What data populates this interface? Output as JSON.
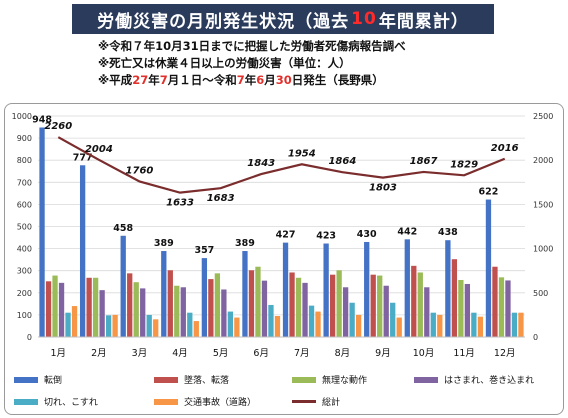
{
  "header": {
    "title_prefix": "労働災害の月別発生状況（過去",
    "title_accent": "10",
    "title_suffix": "年間累計）"
  },
  "notes": {
    "line1": "※令和７年10月31日までに把握した労働者死傷病報告調べ",
    "line2": "※死亡又は休業４日以上の労働災害（単位：人）",
    "line3_a": "※平成",
    "line3_b": "27",
    "line3_c": "年",
    "line3_d": "7",
    "line3_e": "月１日～令和",
    "line3_f": "7",
    "line3_g": "年",
    "line3_h": "6",
    "line3_i": "月",
    "line3_j": "30",
    "line3_k": "日発生（長野県）"
  },
  "chart_data": {
    "type": "bar",
    "categories": [
      "1月",
      "2月",
      "3月",
      "4月",
      "5月",
      "6月",
      "7月",
      "8月",
      "9月",
      "10月",
      "11月",
      "12月"
    ],
    "ylim": [
      0,
      1000
    ],
    "y2lim": [
      0,
      2500
    ],
    "y_ticks": [
      "0",
      "100",
      "200",
      "300",
      "400",
      "500",
      "600",
      "700",
      "800",
      "900",
      "1000"
    ],
    "y2_ticks": [
      "0",
      "500",
      "1000",
      "1500",
      "2000",
      "2500"
    ],
    "series": [
      {
        "name": "転倒",
        "color": "#4472c4",
        "values": [
          948,
          777,
          458,
          389,
          357,
          389,
          427,
          423,
          430,
          442,
          438,
          622
        ],
        "labeled": true
      },
      {
        "name": "墜落、転落",
        "color": "#c0504d",
        "values": [
          252,
          268,
          288,
          302,
          262,
          302,
          292,
          282,
          282,
          322,
          352,
          318
        ]
      },
      {
        "name": "無理な動作",
        "color": "#9bbb59",
        "values": [
          278,
          268,
          248,
          232,
          288,
          318,
          268,
          302,
          278,
          292,
          258,
          270
        ]
      },
      {
        "name": "はさまれ、巻き込まれ",
        "color": "#8064a2",
        "values": [
          245,
          212,
          220,
          225,
          215,
          255,
          245,
          225,
          232,
          225,
          240,
          256
        ]
      },
      {
        "name": "切れ、こすれ",
        "color": "#4bacc6",
        "values": [
          110,
          98,
          100,
          110,
          115,
          145,
          142,
          155,
          155,
          110,
          110,
          110
        ]
      },
      {
        "name": "交通事故（道路）",
        "color": "#f79646",
        "values": [
          140,
          100,
          80,
          72,
          88,
          95,
          115,
          100,
          88,
          100,
          92,
          110
        ]
      }
    ],
    "total": {
      "name": "総計",
      "color": "#7b2c2c",
      "values": [
        2260,
        2004,
        1760,
        1633,
        1683,
        1843,
        1954,
        1864,
        1803,
        1867,
        1829,
        2016
      ]
    },
    "legend": "bottom"
  }
}
